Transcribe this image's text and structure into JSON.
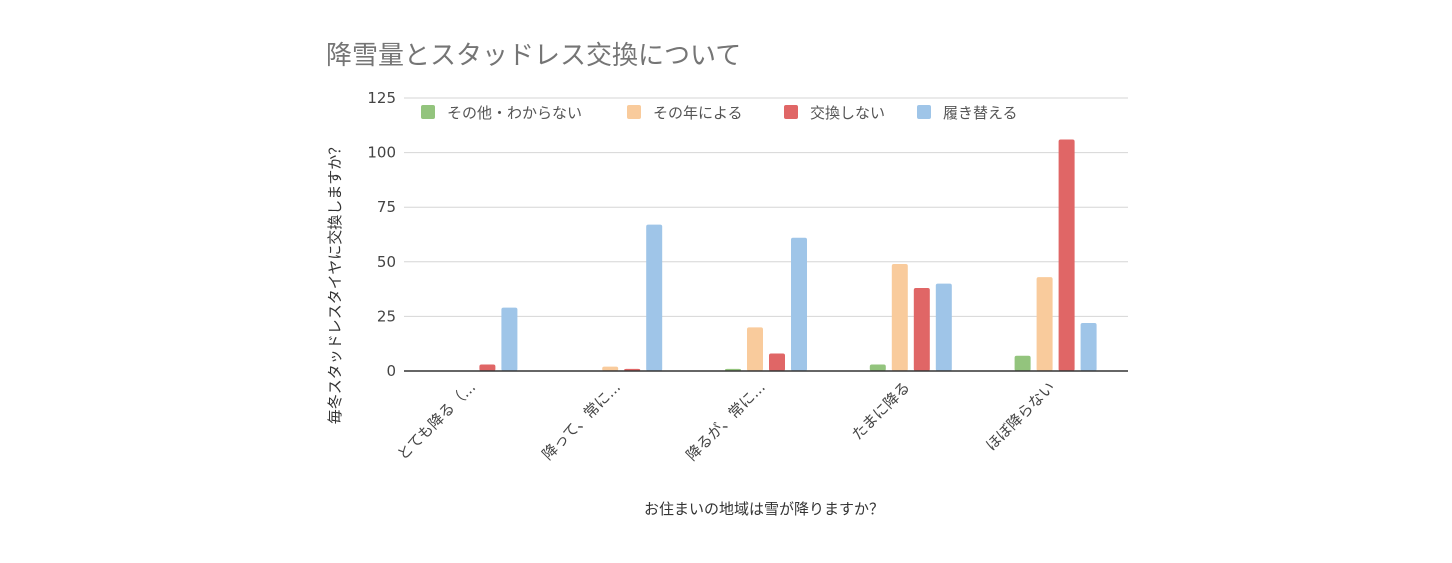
{
  "chart_data": {
    "type": "bar",
    "title": "降雪量とスタッドレス交換について",
    "xlabel": "お住まいの地域は雪が降りますか？",
    "ylabel": "毎冬スタッドレスタイヤに交換しますか？",
    "categories": [
      "とても降る（...",
      "降って、常に...",
      "降るが、常に...",
      "たまに降る",
      "ほぼ降らない"
    ],
    "ylim": [
      0,
      125
    ],
    "yticks": [
      0,
      25,
      50,
      75,
      100,
      125
    ],
    "grid": true,
    "legend_position": "top",
    "series": [
      {
        "name": "その他・わからない",
        "color": "#93c47d",
        "values": [
          0,
          0,
          1,
          3,
          7
        ]
      },
      {
        "name": "その年による",
        "color": "#f9cb9c",
        "values": [
          0,
          2,
          20,
          49,
          43
        ]
      },
      {
        "name": "交換しない",
        "color": "#e06666",
        "values": [
          3,
          1,
          8,
          38,
          106
        ]
      },
      {
        "name": "履き替える",
        "color": "#9fc5e8",
        "values": [
          29,
          67,
          61,
          40,
          22
        ]
      }
    ]
  }
}
